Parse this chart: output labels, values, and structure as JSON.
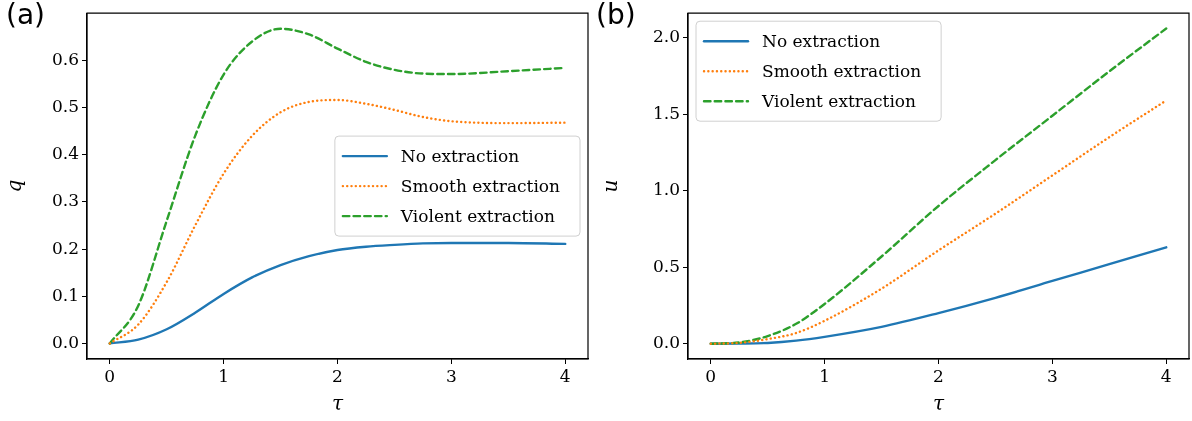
{
  "chart_data": [
    {
      "type": "line",
      "title": "(a)",
      "xlabel": "τ",
      "ylabel": "q",
      "xlim": [
        -0.2,
        4.2
      ],
      "xticks": [
        0,
        1,
        2,
        3,
        4
      ],
      "ylim": [
        -0.033,
        0.7
      ],
      "yticks": [
        {
          "value": 0,
          "label": "0.0"
        },
        {
          "value": 0.1,
          "label": "0.1"
        },
        {
          "value": 0.2,
          "label": "0.2"
        },
        {
          "value": 0.3,
          "label": "0.3"
        },
        {
          "value": 0.4,
          "label": "0.4"
        },
        {
          "value": 0.5,
          "label": "0.5"
        },
        {
          "value": 0.6,
          "label": "0.6"
        }
      ],
      "grid": false,
      "legend": "right",
      "marker": "none",
      "x": [
        0,
        0.25,
        0.5,
        0.75,
        1,
        1.25,
        1.5,
        1.75,
        2,
        2.25,
        2.5,
        2.75,
        3,
        3.5,
        4
      ],
      "series": [
        {
          "name": "No extraction",
          "color": "#1f77b4",
          "line_style": "solid",
          "values": [
            0,
            0.008,
            0.03,
            0.065,
            0.105,
            0.14,
            0.166,
            0.185,
            0.198,
            0.205,
            0.209,
            0.212,
            0.213,
            0.213,
            0.211
          ]
        },
        {
          "name": "Smooth extraction",
          "color": "#ff7f0e",
          "line_style": "dotted",
          "values": [
            0,
            0.04,
            0.13,
            0.25,
            0.36,
            0.44,
            0.49,
            0.512,
            0.516,
            0.508,
            0.495,
            0.48,
            0.471,
            0.467,
            0.468
          ]
        },
        {
          "name": "Violent extraction",
          "color": "#2ca02c",
          "line_style": "dashed",
          "values": [
            0,
            0.08,
            0.26,
            0.44,
            0.57,
            0.64,
            0.667,
            0.655,
            0.625,
            0.597,
            0.58,
            0.572,
            0.571,
            0.577,
            0.584
          ]
        }
      ]
    },
    {
      "type": "line",
      "title": "(b)",
      "xlabel": "τ",
      "ylabel": "u",
      "xlim": [
        -0.2,
        4.2
      ],
      "xticks": [
        0,
        1,
        2,
        3,
        4
      ],
      "ylim": [
        -0.1,
        2.16
      ],
      "yticks": [
        {
          "value": 0,
          "label": "0.0"
        },
        {
          "value": 0.5,
          "label": "0.5"
        },
        {
          "value": 1,
          "label": "1.0"
        },
        {
          "value": 1.5,
          "label": "1.5"
        },
        {
          "value": 2,
          "label": "2.0"
        }
      ],
      "grid": false,
      "legend": "top left",
      "marker": "none",
      "x": [
        0,
        0.25,
        0.5,
        0.75,
        1,
        1.5,
        2,
        2.5,
        3,
        3.5,
        4
      ],
      "series": [
        {
          "name": "No extraction",
          "color": "#1f77b4",
          "line_style": "solid",
          "values": [
            0,
            0.001,
            0.005,
            0.02,
            0.045,
            0.11,
            0.2,
            0.3,
            0.41,
            0.52,
            0.63
          ]
        },
        {
          "name": "Smooth extraction",
          "color": "#ff7f0e",
          "line_style": "dotted",
          "values": [
            0,
            0.005,
            0.03,
            0.07,
            0.15,
            0.36,
            0.61,
            0.85,
            1.1,
            1.35,
            1.59
          ]
        },
        {
          "name": "Violent extraction",
          "color": "#2ca02c",
          "line_style": "dashed",
          "values": [
            0,
            0.008,
            0.05,
            0.13,
            0.26,
            0.57,
            0.9,
            1.2,
            1.49,
            1.78,
            2.06
          ]
        }
      ]
    }
  ]
}
